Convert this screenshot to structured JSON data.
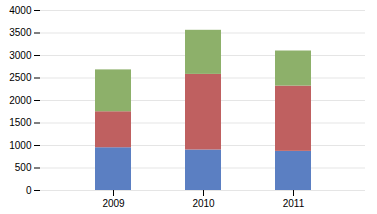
{
  "chart_data": {
    "type": "bar",
    "categories": [
      "2009",
      "2010",
      "2011"
    ],
    "series": [
      {
        "color": "#5b7fc2",
        "values": [
          950,
          900,
          870
        ]
      },
      {
        "color": "#bf6060",
        "values": [
          800,
          1680,
          1450
        ]
      },
      {
        "color": "#8db06a",
        "values": [
          930,
          980,
          780
        ]
      }
    ],
    "ylim": [
      0,
      4000
    ],
    "yticks": [
      0,
      500,
      1000,
      1500,
      2000,
      2500,
      3000,
      3500,
      4000
    ],
    "grid": true,
    "stacked": true
  }
}
